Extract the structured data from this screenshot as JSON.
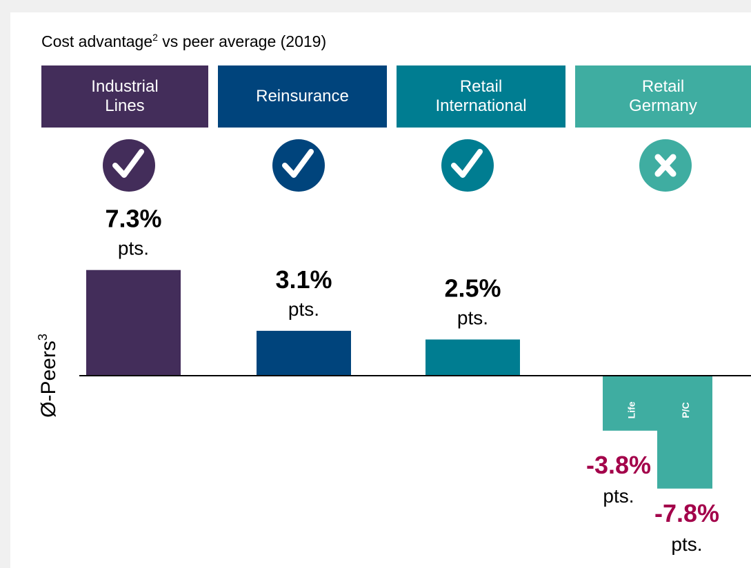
{
  "chart_data": {
    "type": "bar",
    "title": "Cost advantage",
    "title_superscript": "2",
    "title_suffix": " vs peer average (2019)",
    "y_label": "Ø-Peers",
    "y_label_superscript": "3",
    "unit": "pts.",
    "categories": [
      "Industrial Lines",
      "Reinsurance",
      "Retail International",
      "Retail Germany"
    ],
    "colors": [
      "#432d5a",
      "#00447c",
      "#007d91",
      "#3fada1"
    ],
    "advantage": [
      true,
      true,
      true,
      false
    ],
    "values": [
      7.3,
      3.1,
      2.5,
      null
    ],
    "value_labels": [
      "7.3%",
      "3.1%",
      "2.5%",
      null
    ],
    "sub_bars": [
      {
        "name": "Life",
        "value": -3.8,
        "value_label": "-3.8%"
      },
      {
        "name": "P/C",
        "value": -7.8,
        "value_label": "-7.8%"
      }
    ],
    "negative_label_color": "#a3004a"
  }
}
